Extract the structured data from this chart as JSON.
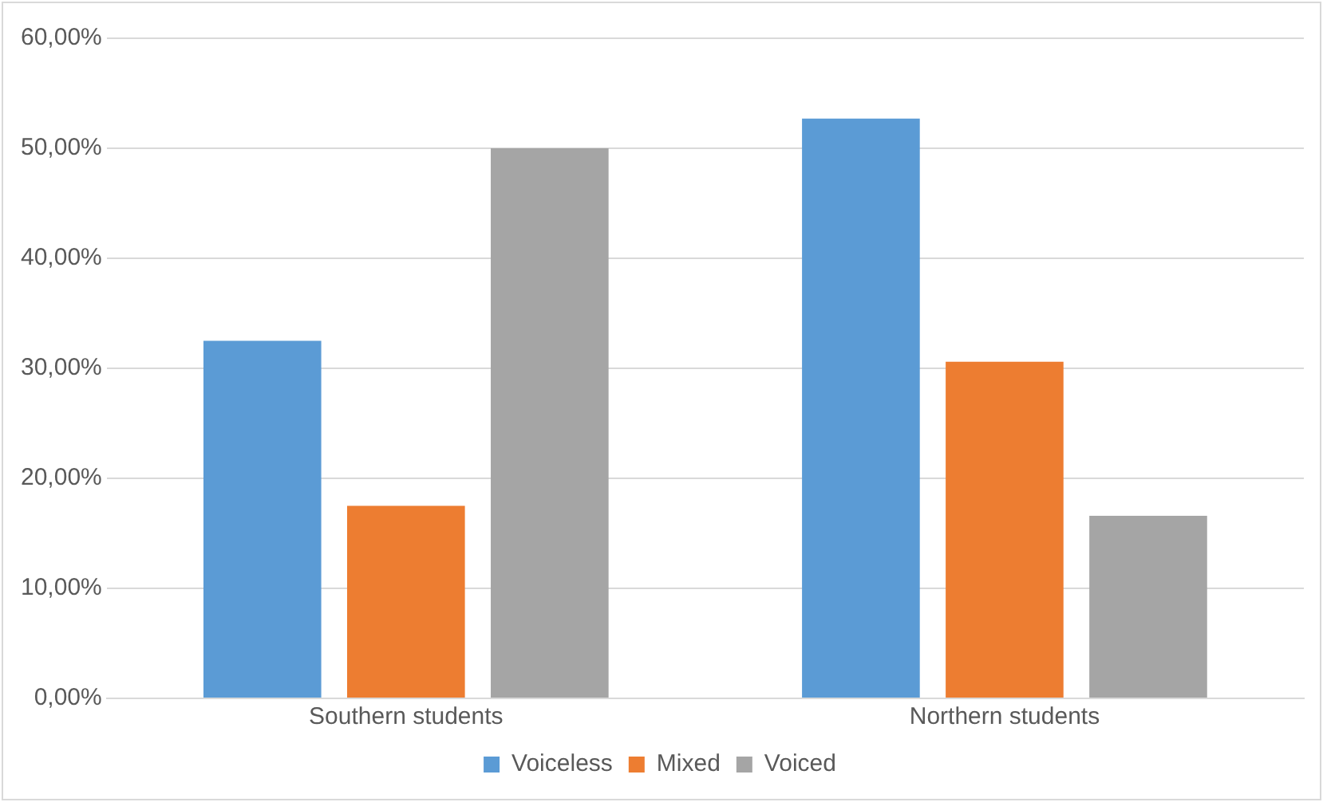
{
  "chart_data": {
    "type": "bar",
    "categories": [
      "Southern students",
      "Northern students"
    ],
    "series": [
      {
        "name": "Voiceless",
        "color": "#5b9bd5",
        "values": [
          32.5,
          52.7
        ]
      },
      {
        "name": "Mixed",
        "color": "#ed7d31",
        "values": [
          17.5,
          30.6
        ]
      },
      {
        "name": "Voiced",
        "color": "#a5a5a5",
        "values": [
          50,
          16.6
        ]
      }
    ],
    "ylim": [
      0,
      60
    ],
    "yticks": [
      {
        "value": 0,
        "label": "0,00%"
      },
      {
        "value": 10,
        "label": "10,00%"
      },
      {
        "value": 20,
        "label": "20,00%"
      },
      {
        "value": 30,
        "label": "30,00%"
      },
      {
        "value": 40,
        "label": "40,00%"
      },
      {
        "value": 50,
        "label": "50,00%"
      },
      {
        "value": 60,
        "label": "60,00%"
      }
    ],
    "grid": "y",
    "legend": "bottom"
  }
}
